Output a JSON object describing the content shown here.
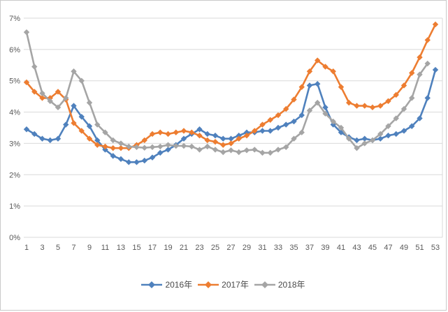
{
  "chart_data": {
    "type": "line",
    "title": "",
    "xlabel": "",
    "ylabel": "",
    "ylim": [
      0,
      7
    ],
    "grid": "horizontal",
    "legend_position": "bottom",
    "marker": "diamond",
    "y_tick_labels": [
      "0%",
      "1%",
      "2%",
      "3%",
      "4%",
      "5%",
      "6%",
      "7%"
    ],
    "x_ticks": [
      1,
      3,
      5,
      7,
      9,
      11,
      13,
      15,
      17,
      19,
      21,
      23,
      25,
      27,
      29,
      31,
      33,
      35,
      37,
      39,
      41,
      43,
      45,
      47,
      49,
      51,
      53
    ],
    "x_range": [
      1,
      53
    ],
    "series": [
      {
        "name": "2016年",
        "color": "#4f81bd",
        "start_week": 1,
        "values": [
          3.45,
          3.3,
          3.15,
          3.1,
          3.15,
          3.6,
          4.2,
          3.85,
          3.55,
          3.1,
          2.8,
          2.6,
          2.5,
          2.4,
          2.4,
          2.45,
          2.55,
          2.7,
          2.8,
          2.95,
          3.15,
          3.3,
          3.45,
          3.3,
          3.25,
          3.15,
          3.15,
          3.25,
          3.35,
          3.35,
          3.4,
          3.4,
          3.5,
          3.6,
          3.7,
          3.9,
          4.85,
          4.9,
          4.15,
          3.6,
          3.35,
          3.2,
          3.1,
          3.15,
          3.1,
          3.15,
          3.25,
          3.3,
          3.4,
          3.55,
          3.8,
          4.45,
          5.35
        ]
      },
      {
        "name": "2017年",
        "color": "#ed7d31",
        "start_week": 1,
        "values": [
          4.95,
          4.65,
          4.45,
          4.45,
          4.65,
          4.4,
          3.65,
          3.4,
          3.15,
          2.95,
          2.9,
          2.85,
          2.85,
          2.85,
          2.95,
          3.1,
          3.3,
          3.35,
          3.3,
          3.35,
          3.4,
          3.35,
          3.25,
          3.1,
          3.05,
          2.95,
          3.0,
          3.15,
          3.25,
          3.4,
          3.6,
          3.75,
          3.9,
          4.1,
          4.4,
          4.8,
          5.3,
          5.65,
          5.45,
          5.3,
          4.8,
          4.3,
          4.2,
          4.2,
          4.15,
          4.2,
          4.35,
          4.55,
          4.85,
          5.25,
          5.75,
          6.3,
          6.8
        ]
      },
      {
        "name": "2018年",
        "color": "#a5a5a5",
        "start_week": 1,
        "values": [
          6.55,
          5.45,
          4.6,
          4.35,
          4.15,
          4.45,
          5.3,
          5.0,
          4.3,
          3.6,
          3.35,
          3.1,
          3.0,
          2.9,
          2.88,
          2.86,
          2.88,
          2.9,
          2.95,
          2.92,
          2.92,
          2.9,
          2.8,
          2.9,
          2.8,
          2.72,
          2.78,
          2.72,
          2.78,
          2.8,
          2.7,
          2.7,
          2.8,
          2.88,
          3.15,
          3.35,
          4.05,
          4.3,
          3.95,
          3.7,
          3.5,
          3.15,
          2.85,
          3.0,
          3.1,
          3.3,
          3.55,
          3.8,
          4.1,
          4.45,
          5.2,
          5.55
        ]
      }
    ]
  },
  "legend": {
    "items": [
      "2016年",
      "2017年",
      "2018年"
    ]
  }
}
